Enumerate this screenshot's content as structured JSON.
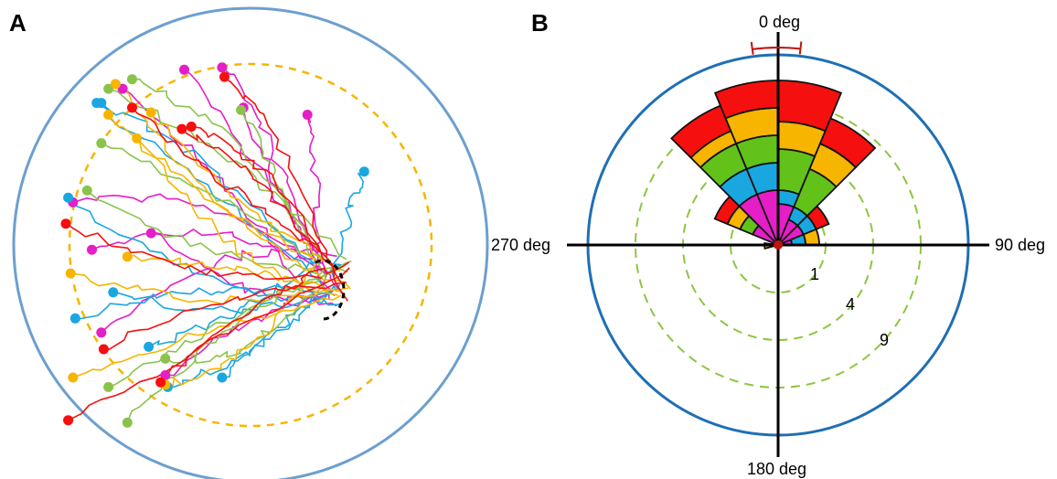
{
  "panels": {
    "a": {
      "label": "A"
    },
    "b": {
      "label": "B"
    }
  },
  "colors": {
    "arena_outline": "#6c9fcf",
    "inner_boundary": "#f7b500",
    "target_zone": "#000000",
    "polar_outline": "#1f6fb4",
    "ring_dash": "#8cc640",
    "mean_marker": "#c0140c",
    "series": {
      "magenta": "#e51ec8",
      "blue": "#1aa7e0",
      "green": "#62c21a",
      "yellow": "#f7b500",
      "red": "#f50f0f"
    },
    "traj_green": "#8bc34a"
  },
  "chart_data": [
    {
      "panel": "A",
      "type": "scatter",
      "description_of_marks": "trajectory end points (dots)",
      "series": [
        {
          "color": "magenta",
          "start_points": [
            [
              -0.54,
              0.66
            ],
            [
              -0.28,
              0.74
            ],
            [
              -0.12,
              0.75
            ],
            [
              0.24,
              0.55
            ],
            [
              -0.75,
              0.18
            ],
            [
              -0.42,
              0.05
            ],
            [
              -0.63,
              -0.37
            ],
            [
              -0.36,
              -0.55
            ],
            [
              -0.03,
              0.58
            ],
            [
              -0.67,
              -0.02
            ]
          ]
        },
        {
          "color": "blue",
          "start_points": [
            [
              -0.77,
              0.2
            ],
            [
              -0.74,
              -0.31
            ],
            [
              -0.65,
              0.6
            ],
            [
              -0.58,
              -0.2
            ],
            [
              -0.43,
              -0.43
            ],
            [
              0.48,
              0.31
            ],
            [
              -0.12,
              -0.56
            ],
            [
              -0.35,
              -0.6
            ],
            [
              -0.63,
              0.6
            ]
          ]
        },
        {
          "color": "green",
          "start_points": [
            [
              -0.5,
              0.7
            ],
            [
              -0.04,
              0.57
            ],
            [
              -0.63,
              0.43
            ],
            [
              -0.69,
              0.23
            ],
            [
              -0.6,
              -0.6
            ],
            [
              -0.36,
              -0.48
            ],
            [
              -0.52,
              -0.75
            ],
            [
              -0.6,
              0.66
            ]
          ]
        },
        {
          "color": "yellow",
          "start_points": [
            [
              -0.57,
              0.68
            ],
            [
              -0.42,
              0.56
            ],
            [
              -0.6,
              0.55
            ],
            [
              -0.48,
              0.45
            ],
            [
              -0.76,
              -0.12
            ],
            [
              -0.75,
              -0.56
            ],
            [
              -0.36,
              -0.59
            ],
            [
              -0.52,
              -0.05
            ]
          ]
        },
        {
          "color": "red",
          "start_points": [
            [
              -0.5,
              0.58
            ],
            [
              -0.29,
              0.49
            ],
            [
              -0.78,
              0.09
            ],
            [
              -0.11,
              0.71
            ],
            [
              -0.62,
              -0.44
            ],
            [
              -0.38,
              -0.58
            ],
            [
              -0.77,
              -0.74
            ],
            [
              -0.25,
              0.5
            ]
          ]
        }
      ],
      "target": {
        "x": 0.35,
        "y": -0.14
      }
    },
    {
      "panel": "B",
      "type": "polar-bar",
      "angle_labels": [
        "0 deg",
        "90 deg",
        "180 deg",
        "270 deg"
      ],
      "ring_labels": [
        "1",
        "4",
        "9"
      ],
      "ring_values": [
        1,
        4,
        9
      ],
      "radial_max": 12,
      "bin_width_deg": 22.5,
      "mean_angle_deg": -0.5,
      "mean_spread_deg": 14,
      "stack_order": [
        "magenta",
        "blue",
        "green",
        "yellow",
        "red"
      ],
      "bins": [
        {
          "start_deg": 0,
          "magenta": 3,
          "blue": 1,
          "green": 3,
          "yellow": 2,
          "red": 3
        },
        {
          "start_deg": 22.5,
          "magenta": 2,
          "blue": 1,
          "green": 3,
          "yellow": 2,
          "red": 2
        },
        {
          "start_deg": 45,
          "magenta": 2,
          "blue": 1,
          "green": 0,
          "yellow": 0,
          "red": 1
        },
        {
          "start_deg": 67.5,
          "magenta": 1,
          "blue": 1,
          "green": 0,
          "yellow": 1,
          "red": 0
        },
        {
          "start_deg": 255,
          "magenta": 0,
          "blue": 0,
          "green": 0,
          "yellow": 1,
          "red": 0
        },
        {
          "start_deg": 292.5,
          "magenta": 2,
          "blue": 0,
          "green": 1,
          "yellow": 1,
          "red": 1
        },
        {
          "start_deg": 315,
          "magenta": 4,
          "blue": 2,
          "green": 2,
          "yellow": 1,
          "red": 2
        },
        {
          "start_deg": 337.5,
          "magenta": 4,
          "blue": 2,
          "green": 2,
          "yellow": 2,
          "red": 2
        }
      ]
    }
  ]
}
